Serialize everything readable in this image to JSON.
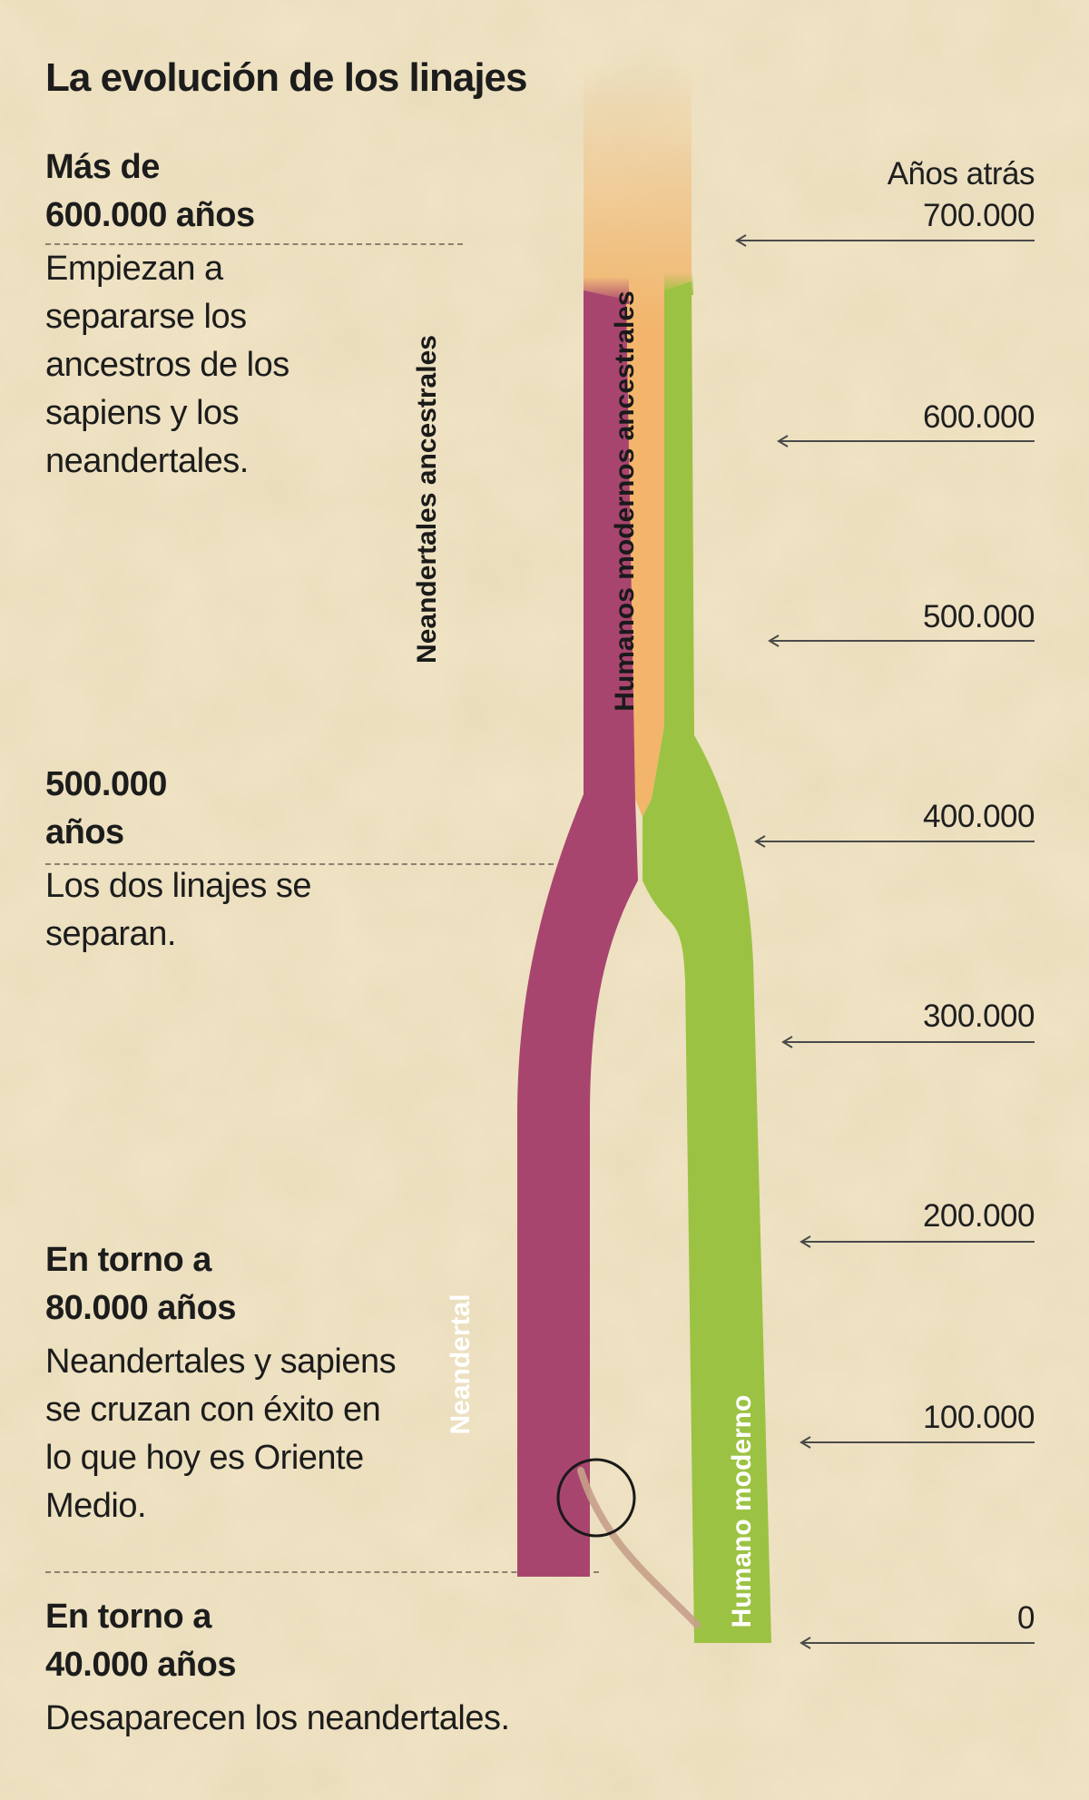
{
  "title": "La evolución de los linajes",
  "axis": {
    "title": "Años atrás",
    "ticks": [
      "700.000",
      "600.000",
      "500.000",
      "400.000",
      "300.000",
      "200.000",
      "100.000",
      "0"
    ]
  },
  "events": [
    {
      "heading_line1": "Más de",
      "heading_line2": "600.000 años",
      "text": [
        "Empiezan a",
        "separarse los",
        "ancestros de los",
        "sapiens y los",
        "neandertales."
      ]
    },
    {
      "heading_line1": "500.000",
      "heading_line2": "años",
      "text": [
        "Los dos linajes se",
        "separan."
      ]
    },
    {
      "heading_line1": "En torno a",
      "heading_line2": "80.000 años",
      "text": [
        "Neandertales y sapiens",
        "se cruzan con éxito en",
        "lo que hoy es Oriente",
        "Medio."
      ]
    },
    {
      "heading_line1": "En torno a",
      "heading_line2": "40.000 años",
      "text": [
        "Desaparecen los neandertales."
      ]
    }
  ],
  "lineages": {
    "neanderthal_ancestral": "Neandertales ancestrales",
    "modern_ancestral": "Humanos modernos ancestrales",
    "neanderthal": "Neandertal",
    "modern": "Humano moderno"
  },
  "colors": {
    "background": "#f0e4c4",
    "common_ancestor": "#f2b56b",
    "neanderthal": "#a8456f",
    "modern_human": "#9cc243",
    "interbreed_link": "#c7a08a"
  },
  "icons": [
    "interbreeding-circle-icon",
    "arrow-left-icon"
  ]
}
